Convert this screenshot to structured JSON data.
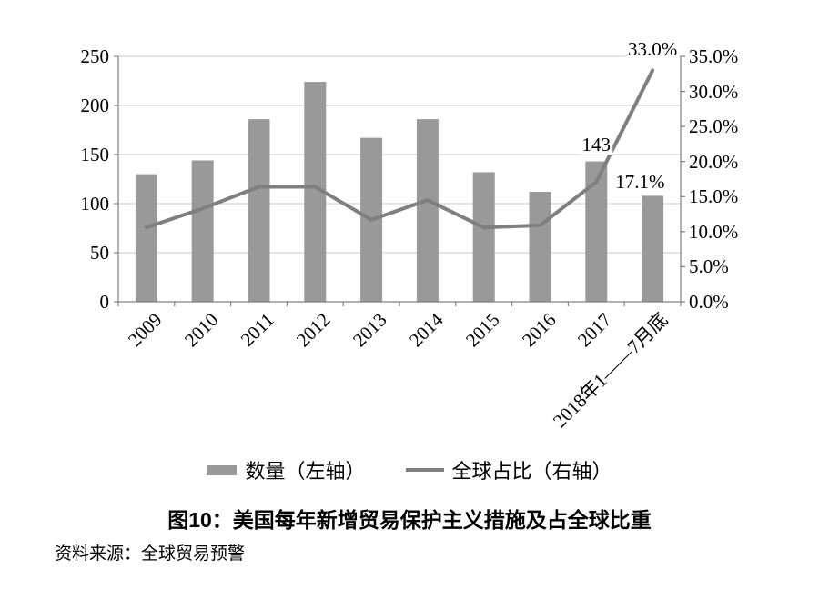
{
  "chart_data": {
    "type": "bar",
    "title": "图10：美国每年新增贸易保护主义措施及占全球比重",
    "source": "资料来源：全球贸易预警",
    "categories": [
      "2009",
      "2010",
      "2011",
      "2012",
      "2013",
      "2014",
      "2015",
      "2016",
      "2017",
      "2018年1——7月底"
    ],
    "series": [
      {
        "name": "数量（左轴）",
        "type": "bar",
        "axis": "left",
        "color": "#999999",
        "values": [
          130,
          144,
          186,
          224,
          167,
          186,
          132,
          112,
          143,
          108
        ]
      },
      {
        "name": "全球占比（右轴）",
        "type": "line",
        "axis": "right",
        "color": "#7f7f7f",
        "values": [
          10.6,
          13.3,
          16.4,
          16.4,
          11.7,
          14.5,
          10.6,
          10.9,
          17.1,
          33.0
        ]
      }
    ],
    "left_axis": {
      "min": 0,
      "max": 250,
      "step": 50,
      "tick_labels": [
        "0",
        "50",
        "100",
        "150",
        "200",
        "250"
      ]
    },
    "right_axis": {
      "min": 0,
      "max": 35,
      "step": 5,
      "tick_labels": [
        "0.0%",
        "5.0%",
        "10.0%",
        "15.0%",
        "20.0%",
        "25.0%",
        "30.0%",
        "35.0%"
      ]
    },
    "grid": true,
    "legend_position": "bottom",
    "annotations": [
      {
        "text": "143",
        "series": 0,
        "index": 8,
        "placement": "above"
      },
      {
        "text": "17.1%",
        "series": 1,
        "index": 8,
        "placement": "right"
      },
      {
        "text": "33.0%",
        "series": 1,
        "index": 9,
        "placement": "above"
      }
    ]
  },
  "colors": {
    "bar": "#999999",
    "line": "#7f7f7f",
    "grid": "#c8c8c8",
    "axis": "#808080",
    "text": "#000000",
    "background": "#ffffff"
  }
}
